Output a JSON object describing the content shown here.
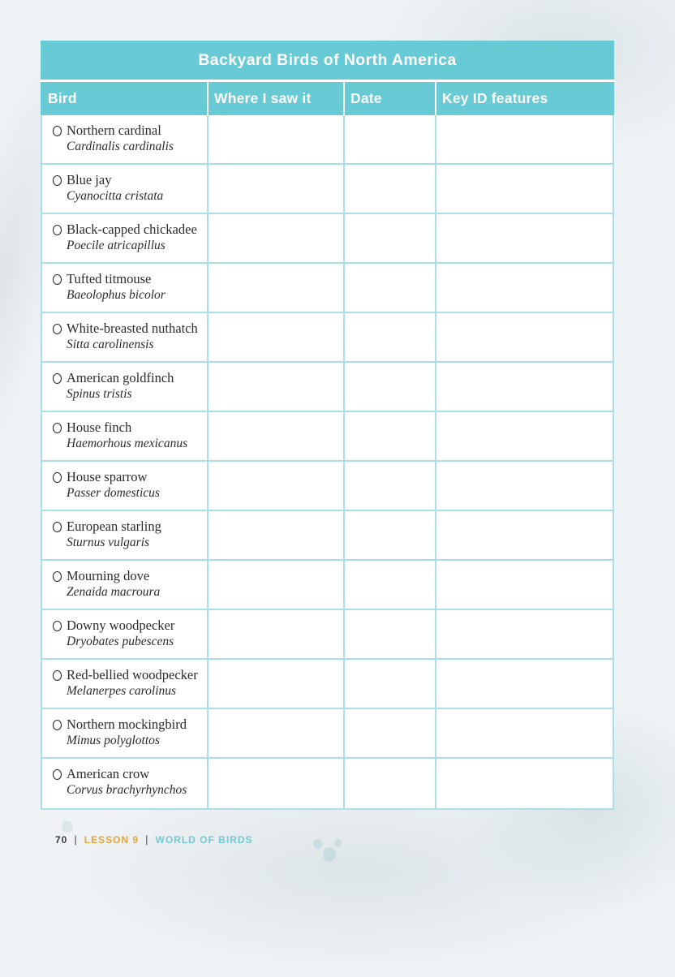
{
  "title": "Backyard Birds of North America",
  "table": {
    "columns": [
      {
        "label": "Bird"
      },
      {
        "label": "Where I saw it"
      },
      {
        "label": "Date"
      },
      {
        "label": "Key ID features"
      }
    ],
    "rows": [
      {
        "common_name": "Northern cardinal",
        "scientific_name": "Cardinalis cardinalis"
      },
      {
        "common_name": "Blue jay",
        "scientific_name": "Cyanocitta cristata"
      },
      {
        "common_name": "Black-capped chickadee",
        "scientific_name": "Poecile atricapillus"
      },
      {
        "common_name": "Tufted titmouse",
        "scientific_name": "Baeolophus bicolor"
      },
      {
        "common_name": "White-breasted nuthatch",
        "scientific_name": "Sitta carolinensis"
      },
      {
        "common_name": "American goldfinch",
        "scientific_name": "Spinus tristis"
      },
      {
        "common_name": "House finch",
        "scientific_name": "Haemorhous mexicanus"
      },
      {
        "common_name": "House sparrow",
        "scientific_name": "Passer domesticus"
      },
      {
        "common_name": "European starling",
        "scientific_name": "Sturnus vulgaris"
      },
      {
        "common_name": "Mourning dove",
        "scientific_name": "Zenaida macroura"
      },
      {
        "common_name": "Downy woodpecker",
        "scientific_name": "Dryobates pubescens"
      },
      {
        "common_name": "Red-bellied woodpecker",
        "scientific_name": "Melanerpes carolinus"
      },
      {
        "common_name": "Northern mockingbird",
        "scientific_name": "Mimus polyglottos"
      },
      {
        "common_name": "American crow",
        "scientific_name": "Corvus brachyrhynchos"
      }
    ]
  },
  "footer": {
    "page_number": "70",
    "separator": "|",
    "lesson_label": "LESSON 9",
    "unit_label": "WORLD OF BIRDS"
  },
  "colors": {
    "header_teal": "#68cad5",
    "border_cyan": "#a9dfe8",
    "lesson_gold": "#e2a43c",
    "unit_teal": "#74c8d3",
    "body_text": "#2b2b2b"
  }
}
